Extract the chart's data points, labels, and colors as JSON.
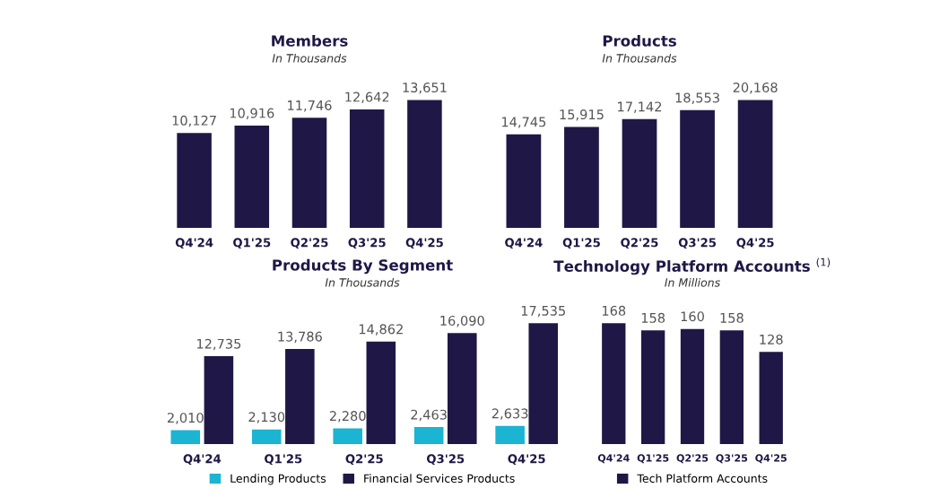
{
  "chart_data": [
    {
      "type": "bar",
      "title": "Members",
      "subtitle": "In Thousands",
      "categories": [
        "Q4'24",
        "Q1'25",
        "Q2'25",
        "Q3'25",
        "Q4'25"
      ],
      "values": [
        10127,
        10916,
        11746,
        12642,
        13651
      ],
      "color": "#1f1846",
      "data_labels": true,
      "value_labels": [
        "10,127",
        "10,916",
        "11,746",
        "12,642",
        "13,651"
      ],
      "tick_labels": "x",
      "grid": false,
      "legend": false
    },
    {
      "type": "bar",
      "title": "Products",
      "subtitle": "In Thousands",
      "categories": [
        "Q4'24",
        "Q1'25",
        "Q2'25",
        "Q3'25",
        "Q4'25"
      ],
      "values": [
        14745,
        15915,
        17142,
        18553,
        20168
      ],
      "color": "#1f1846",
      "data_labels": true,
      "value_labels": [
        "14,745",
        "15,915",
        "17,142",
        "18,553",
        "20,168"
      ],
      "tick_labels": "x",
      "grid": false,
      "legend": false
    },
    {
      "type": "bar",
      "title": "Products By Segment",
      "subtitle": "In Thousands",
      "categories": [
        "Q4'24",
        "Q1'25",
        "Q2'25",
        "Q3'25",
        "Q4'25"
      ],
      "series": [
        {
          "name": "Lending Products",
          "color": "#1bb4d2",
          "values": [
            2010,
            2130,
            2280,
            2463,
            2633
          ],
          "value_labels": [
            "2,010",
            "2,130",
            "2,280",
            "2,463",
            "2,633"
          ]
        },
        {
          "name": "Financial Services Products",
          "color": "#1f1846",
          "values": [
            12735,
            13786,
            14862,
            16090,
            17535
          ],
          "value_labels": [
            "12,735",
            "13,786",
            "14,862",
            "16,090",
            "17,535"
          ]
        }
      ],
      "data_labels": true,
      "tick_labels": "x",
      "grid": false,
      "legend": "bottom"
    },
    {
      "type": "bar",
      "title": "Technology Platform Accounts $^{(1)}$",
      "subtitle": "In Millions",
      "categories": [
        "Q4'24",
        "Q1'25",
        "Q2'25",
        "Q3'25",
        "Q4'25"
      ],
      "series": [
        {
          "name": "Tech Platform Accounts",
          "color": "#1f1846",
          "values": [
            168,
            158,
            160,
            158,
            128
          ]
        }
      ],
      "data_labels": true,
      "tick_labels": "x",
      "grid": false,
      "legend": "bottom"
    }
  ]
}
